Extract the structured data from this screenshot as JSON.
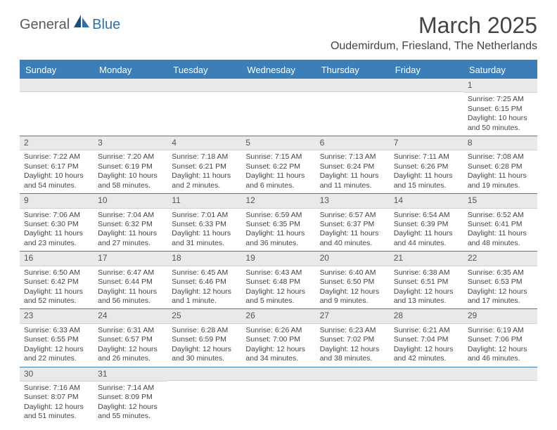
{
  "logo": {
    "part1": "General",
    "part2": "Blue"
  },
  "title": "March 2025",
  "location": "Oudemirdum, Friesland, The Netherlands",
  "colors": {
    "header_bg": "#3c7fb8",
    "header_text": "#ffffff",
    "daynum_bg": "#e9e9e9",
    "text": "#444444",
    "logo_gray": "#5a5a5a",
    "logo_blue": "#2f6fa8"
  },
  "day_names": [
    "Sunday",
    "Monday",
    "Tuesday",
    "Wednesday",
    "Thursday",
    "Friday",
    "Saturday"
  ],
  "weeks": [
    [
      {
        "day": "",
        "lines": [
          "",
          "",
          "",
          ""
        ]
      },
      {
        "day": "",
        "lines": [
          "",
          "",
          "",
          ""
        ]
      },
      {
        "day": "",
        "lines": [
          "",
          "",
          "",
          ""
        ]
      },
      {
        "day": "",
        "lines": [
          "",
          "",
          "",
          ""
        ]
      },
      {
        "day": "",
        "lines": [
          "",
          "",
          "",
          ""
        ]
      },
      {
        "day": "",
        "lines": [
          "",
          "",
          "",
          ""
        ]
      },
      {
        "day": "1",
        "lines": [
          "Sunrise: 7:25 AM",
          "Sunset: 6:15 PM",
          "Daylight: 10 hours",
          "and 50 minutes."
        ]
      }
    ],
    [
      {
        "day": "2",
        "lines": [
          "Sunrise: 7:22 AM",
          "Sunset: 6:17 PM",
          "Daylight: 10 hours",
          "and 54 minutes."
        ]
      },
      {
        "day": "3",
        "lines": [
          "Sunrise: 7:20 AM",
          "Sunset: 6:19 PM",
          "Daylight: 10 hours",
          "and 58 minutes."
        ]
      },
      {
        "day": "4",
        "lines": [
          "Sunrise: 7:18 AM",
          "Sunset: 6:21 PM",
          "Daylight: 11 hours",
          "and 2 minutes."
        ]
      },
      {
        "day": "5",
        "lines": [
          "Sunrise: 7:15 AM",
          "Sunset: 6:22 PM",
          "Daylight: 11 hours",
          "and 6 minutes."
        ]
      },
      {
        "day": "6",
        "lines": [
          "Sunrise: 7:13 AM",
          "Sunset: 6:24 PM",
          "Daylight: 11 hours",
          "and 11 minutes."
        ]
      },
      {
        "day": "7",
        "lines": [
          "Sunrise: 7:11 AM",
          "Sunset: 6:26 PM",
          "Daylight: 11 hours",
          "and 15 minutes."
        ]
      },
      {
        "day": "8",
        "lines": [
          "Sunrise: 7:08 AM",
          "Sunset: 6:28 PM",
          "Daylight: 11 hours",
          "and 19 minutes."
        ]
      }
    ],
    [
      {
        "day": "9",
        "lines": [
          "Sunrise: 7:06 AM",
          "Sunset: 6:30 PM",
          "Daylight: 11 hours",
          "and 23 minutes."
        ]
      },
      {
        "day": "10",
        "lines": [
          "Sunrise: 7:04 AM",
          "Sunset: 6:32 PM",
          "Daylight: 11 hours",
          "and 27 minutes."
        ]
      },
      {
        "day": "11",
        "lines": [
          "Sunrise: 7:01 AM",
          "Sunset: 6:33 PM",
          "Daylight: 11 hours",
          "and 31 minutes."
        ]
      },
      {
        "day": "12",
        "lines": [
          "Sunrise: 6:59 AM",
          "Sunset: 6:35 PM",
          "Daylight: 11 hours",
          "and 36 minutes."
        ]
      },
      {
        "day": "13",
        "lines": [
          "Sunrise: 6:57 AM",
          "Sunset: 6:37 PM",
          "Daylight: 11 hours",
          "and 40 minutes."
        ]
      },
      {
        "day": "14",
        "lines": [
          "Sunrise: 6:54 AM",
          "Sunset: 6:39 PM",
          "Daylight: 11 hours",
          "and 44 minutes."
        ]
      },
      {
        "day": "15",
        "lines": [
          "Sunrise: 6:52 AM",
          "Sunset: 6:41 PM",
          "Daylight: 11 hours",
          "and 48 minutes."
        ]
      }
    ],
    [
      {
        "day": "16",
        "lines": [
          "Sunrise: 6:50 AM",
          "Sunset: 6:42 PM",
          "Daylight: 11 hours",
          "and 52 minutes."
        ]
      },
      {
        "day": "17",
        "lines": [
          "Sunrise: 6:47 AM",
          "Sunset: 6:44 PM",
          "Daylight: 11 hours",
          "and 56 minutes."
        ]
      },
      {
        "day": "18",
        "lines": [
          "Sunrise: 6:45 AM",
          "Sunset: 6:46 PM",
          "Daylight: 12 hours",
          "and 1 minute."
        ]
      },
      {
        "day": "19",
        "lines": [
          "Sunrise: 6:43 AM",
          "Sunset: 6:48 PM",
          "Daylight: 12 hours",
          "and 5 minutes."
        ]
      },
      {
        "day": "20",
        "lines": [
          "Sunrise: 6:40 AM",
          "Sunset: 6:50 PM",
          "Daylight: 12 hours",
          "and 9 minutes."
        ]
      },
      {
        "day": "21",
        "lines": [
          "Sunrise: 6:38 AM",
          "Sunset: 6:51 PM",
          "Daylight: 12 hours",
          "and 13 minutes."
        ]
      },
      {
        "day": "22",
        "lines": [
          "Sunrise: 6:35 AM",
          "Sunset: 6:53 PM",
          "Daylight: 12 hours",
          "and 17 minutes."
        ]
      }
    ],
    [
      {
        "day": "23",
        "lines": [
          "Sunrise: 6:33 AM",
          "Sunset: 6:55 PM",
          "Daylight: 12 hours",
          "and 22 minutes."
        ]
      },
      {
        "day": "24",
        "lines": [
          "Sunrise: 6:31 AM",
          "Sunset: 6:57 PM",
          "Daylight: 12 hours",
          "and 26 minutes."
        ]
      },
      {
        "day": "25",
        "lines": [
          "Sunrise: 6:28 AM",
          "Sunset: 6:59 PM",
          "Daylight: 12 hours",
          "and 30 minutes."
        ]
      },
      {
        "day": "26",
        "lines": [
          "Sunrise: 6:26 AM",
          "Sunset: 7:00 PM",
          "Daylight: 12 hours",
          "and 34 minutes."
        ]
      },
      {
        "day": "27",
        "lines": [
          "Sunrise: 6:23 AM",
          "Sunset: 7:02 PM",
          "Daylight: 12 hours",
          "and 38 minutes."
        ]
      },
      {
        "day": "28",
        "lines": [
          "Sunrise: 6:21 AM",
          "Sunset: 7:04 PM",
          "Daylight: 12 hours",
          "and 42 minutes."
        ]
      },
      {
        "day": "29",
        "lines": [
          "Sunrise: 6:19 AM",
          "Sunset: 7:06 PM",
          "Daylight: 12 hours",
          "and 46 minutes."
        ]
      }
    ],
    [
      {
        "day": "30",
        "lines": [
          "Sunrise: 7:16 AM",
          "Sunset: 8:07 PM",
          "Daylight: 12 hours",
          "and 51 minutes."
        ]
      },
      {
        "day": "31",
        "lines": [
          "Sunrise: 7:14 AM",
          "Sunset: 8:09 PM",
          "Daylight: 12 hours",
          "and 55 minutes."
        ]
      },
      {
        "day": "",
        "lines": [
          "",
          "",
          "",
          ""
        ]
      },
      {
        "day": "",
        "lines": [
          "",
          "",
          "",
          ""
        ]
      },
      {
        "day": "",
        "lines": [
          "",
          "",
          "",
          ""
        ]
      },
      {
        "day": "",
        "lines": [
          "",
          "",
          "",
          ""
        ]
      },
      {
        "day": "",
        "lines": [
          "",
          "",
          "",
          ""
        ]
      }
    ]
  ]
}
